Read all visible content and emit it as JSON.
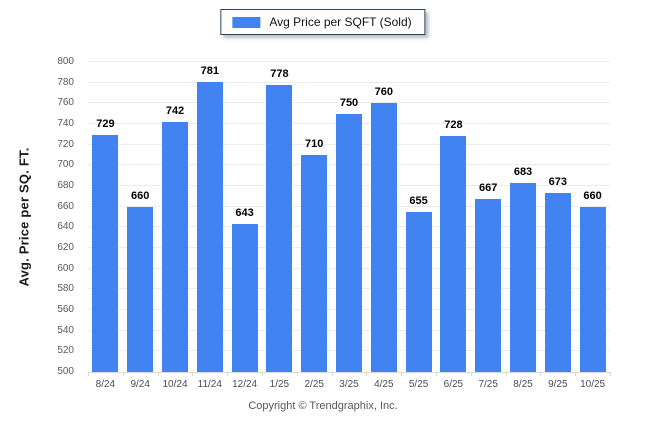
{
  "legend": {
    "label": "Avg Price per SQFT (Sold)",
    "swatch_color": "#4183f1"
  },
  "footer": {
    "text": "Copyright © Trendgraphix, Inc."
  },
  "colors": {
    "bar": "#4183f1",
    "grid": "#ececec",
    "axis": "#d9d9d9",
    "tick_label": "#595959",
    "value_label": "#000000",
    "legend_border": "#33425b"
  },
  "chart_data": {
    "type": "bar",
    "title": "",
    "series_name": "Avg Price per SQFT (Sold)",
    "categories": [
      "8/24",
      "9/24",
      "10/24",
      "11/24",
      "12/24",
      "1/25",
      "2/25",
      "3/25",
      "4/25",
      "5/25",
      "6/25",
      "7/25",
      "8/25",
      "9/25",
      "10/25"
    ],
    "values": [
      729,
      660,
      742,
      781,
      643,
      778,
      710,
      750,
      760,
      655,
      728,
      667,
      683,
      673,
      660
    ],
    "xlabel": "",
    "ylabel": "Avg. Price per SQ. FT.",
    "ylim": [
      500,
      800
    ],
    "ytick_step": 20,
    "grid": true,
    "legend_position": "top-center",
    "value_labels": true
  }
}
